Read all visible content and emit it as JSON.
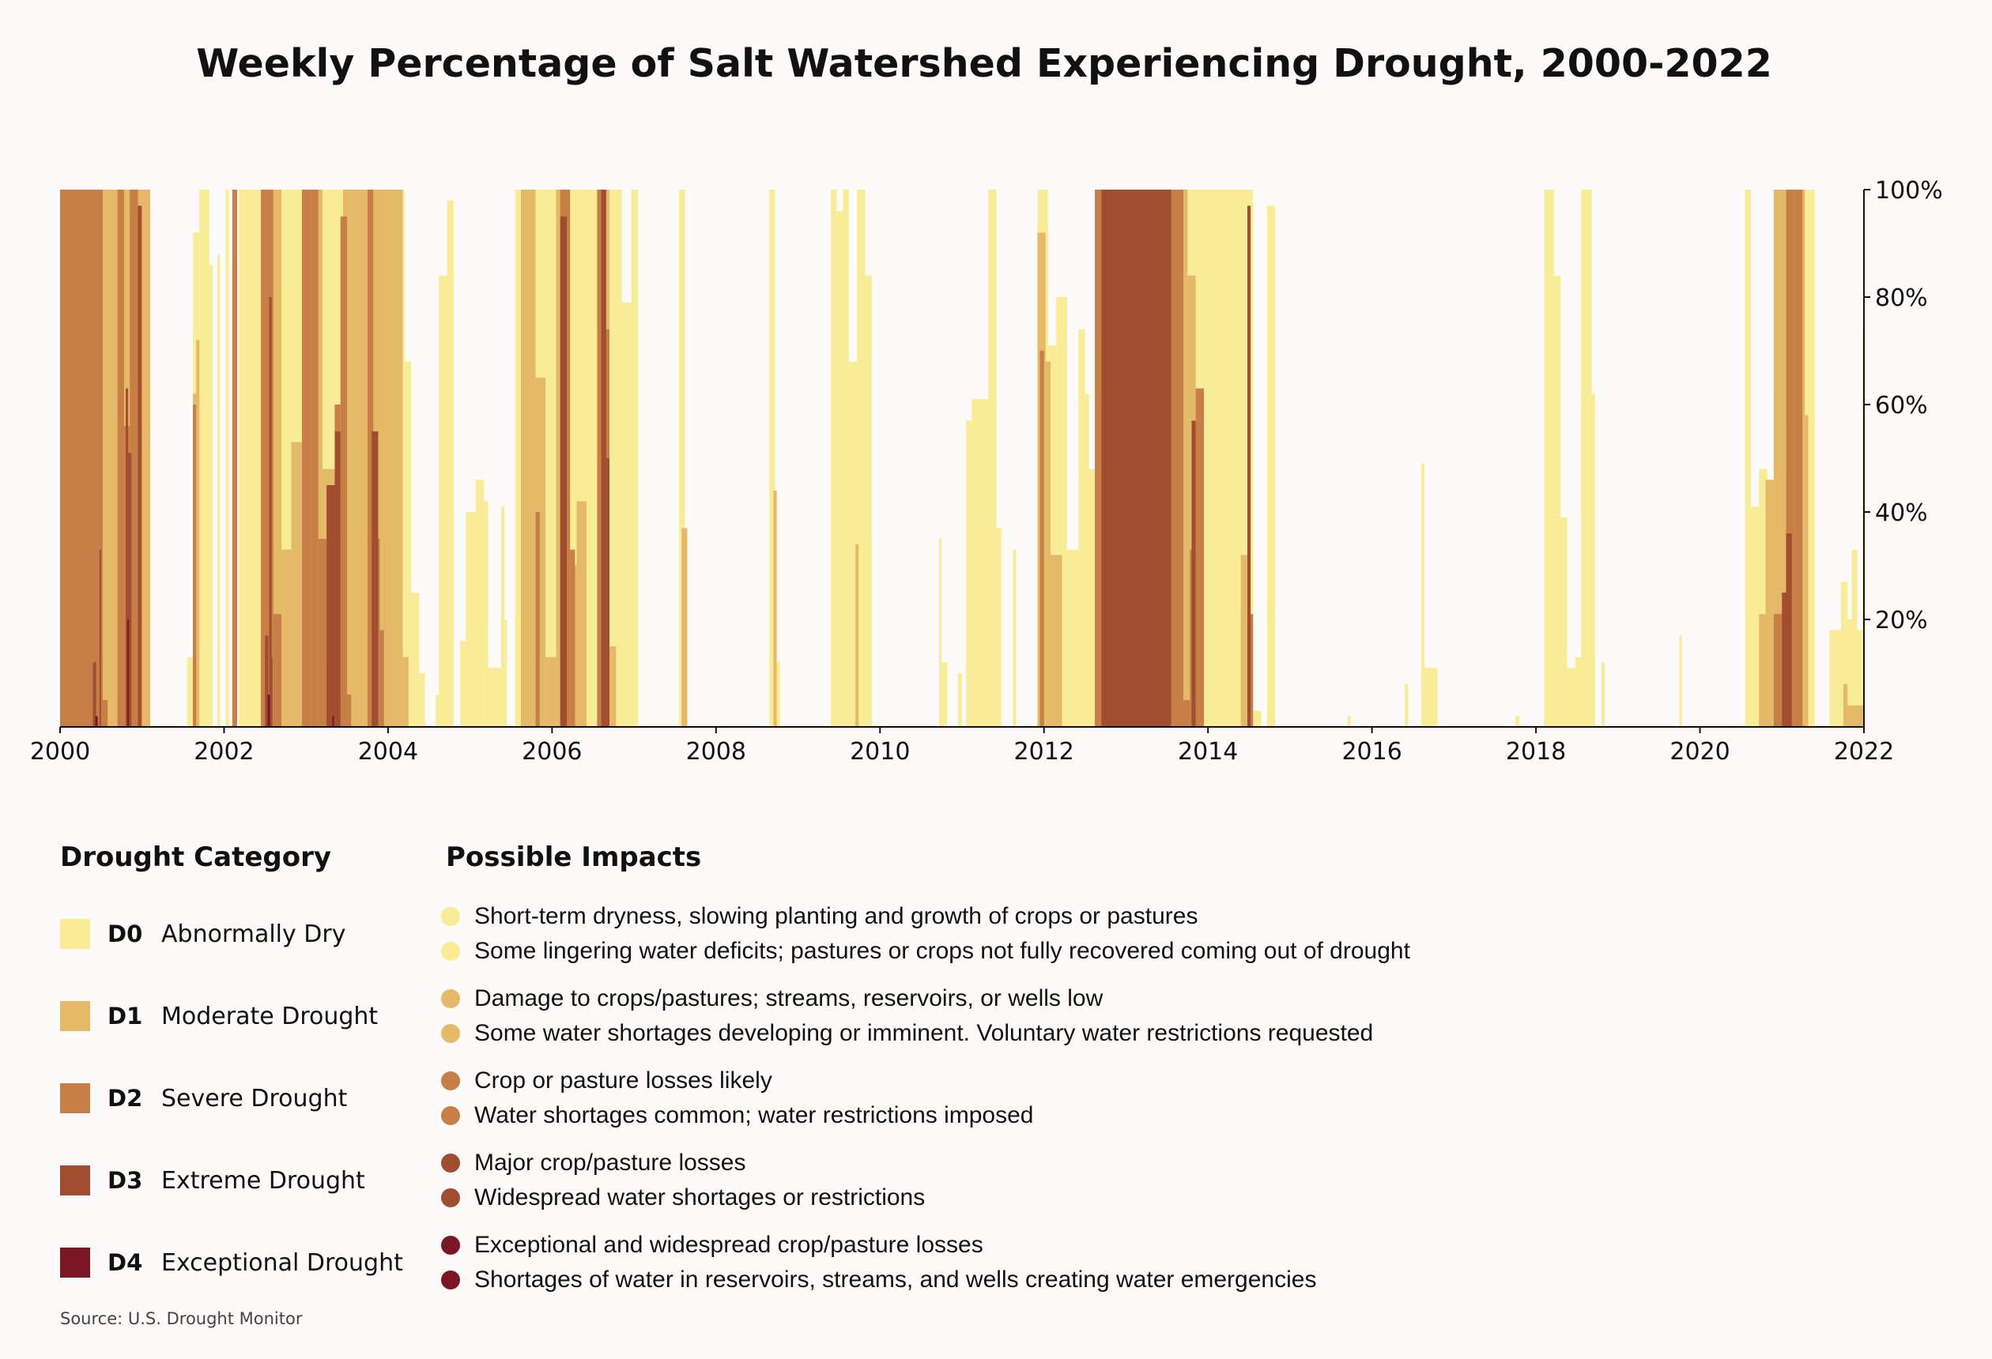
{
  "chart_data": {
    "type": "area",
    "title": "Weekly Percentage of Salt Watershed Experiencing Drought, 2000-2022",
    "xlabel": "",
    "ylabel": "",
    "xlim": [
      2000,
      2022
    ],
    "ylim": [
      0,
      100
    ],
    "x_ticks": [
      "2000",
      "2002",
      "2004",
      "2006",
      "2008",
      "2010",
      "2012",
      "2014",
      "2016",
      "2018",
      "2020",
      "2022"
    ],
    "y_ticks": [
      "20%",
      "40%",
      "60%",
      "80%",
      "100%"
    ],
    "stacking": "cumulative — each value is the percent of area in that category or worse",
    "series": [
      {
        "name": "D0",
        "intervals": [
          [
            2000.0,
            2001.1,
            100
          ],
          [
            2001.55,
            2001.62,
            13
          ],
          [
            2001.62,
            2001.7,
            92
          ],
          [
            2001.7,
            2001.82,
            100
          ],
          [
            2001.82,
            2001.86,
            86
          ],
          [
            2001.92,
            2001.95,
            88
          ],
          [
            2002.02,
            2002.06,
            100
          ],
          [
            2002.18,
            2002.23,
            100
          ],
          [
            2002.23,
            2002.55,
            100
          ],
          [
            2002.55,
            2003.8,
            100
          ],
          [
            2003.8,
            2004.2,
            100
          ],
          [
            2004.2,
            2004.28,
            68
          ],
          [
            2004.28,
            2004.38,
            25
          ],
          [
            2004.38,
            2004.45,
            10
          ],
          [
            2004.58,
            2004.62,
            6
          ],
          [
            2004.62,
            2004.72,
            84
          ],
          [
            2004.72,
            2004.8,
            98
          ],
          [
            2004.88,
            2004.95,
            16
          ],
          [
            2004.95,
            2005.07,
            40
          ],
          [
            2005.07,
            2005.17,
            46
          ],
          [
            2005.17,
            2005.22,
            42
          ],
          [
            2005.22,
            2005.38,
            11
          ],
          [
            2005.38,
            2005.42,
            41
          ],
          [
            2005.42,
            2005.45,
            20
          ],
          [
            2005.55,
            2006.85,
            100
          ],
          [
            2006.85,
            2006.97,
            79
          ],
          [
            2006.97,
            2007.05,
            100
          ],
          [
            2007.55,
            2007.62,
            100
          ],
          [
            2008.65,
            2008.72,
            100
          ],
          [
            2008.72,
            2008.78,
            12
          ],
          [
            2009.4,
            2009.47,
            100
          ],
          [
            2009.47,
            2009.55,
            96
          ],
          [
            2009.55,
            2009.62,
            100
          ],
          [
            2009.62,
            2009.72,
            68
          ],
          [
            2009.72,
            2009.82,
            100
          ],
          [
            2009.82,
            2009.9,
            84
          ],
          [
            2010.72,
            2010.75,
            35
          ],
          [
            2010.75,
            2010.82,
            12
          ],
          [
            2010.95,
            2011.0,
            10
          ],
          [
            2011.05,
            2011.12,
            57
          ],
          [
            2011.12,
            2011.32,
            61
          ],
          [
            2011.32,
            2011.42,
            100
          ],
          [
            2011.42,
            2011.48,
            37
          ],
          [
            2011.62,
            2011.66,
            33
          ],
          [
            2011.92,
            2012.05,
            100
          ],
          [
            2012.05,
            2012.15,
            71
          ],
          [
            2012.15,
            2012.28,
            80
          ],
          [
            2012.28,
            2012.42,
            33
          ],
          [
            2012.42,
            2012.5,
            74
          ],
          [
            2012.5,
            2012.55,
            62
          ],
          [
            2012.55,
            2012.65,
            48
          ],
          [
            2012.65,
            2014.55,
            100
          ],
          [
            2014.55,
            2014.65,
            3
          ],
          [
            2014.72,
            2014.82,
            97
          ],
          [
            2015.7,
            2015.74,
            2
          ],
          [
            2016.4,
            2016.44,
            8
          ],
          [
            2016.6,
            2016.64,
            49
          ],
          [
            2016.64,
            2016.8,
            11
          ],
          [
            2017.75,
            2017.8,
            2
          ],
          [
            2018.1,
            2018.22,
            100
          ],
          [
            2018.22,
            2018.3,
            84
          ],
          [
            2018.3,
            2018.38,
            39
          ],
          [
            2018.38,
            2018.48,
            11
          ],
          [
            2018.48,
            2018.55,
            13
          ],
          [
            2018.55,
            2018.68,
            100
          ],
          [
            2018.68,
            2018.72,
            62
          ],
          [
            2018.8,
            2018.84,
            12
          ],
          [
            2019.75,
            2019.78,
            17
          ],
          [
            2020.55,
            2020.62,
            100
          ],
          [
            2020.62,
            2020.72,
            41
          ],
          [
            2020.72,
            2020.82,
            48
          ],
          [
            2020.82,
            2020.9,
            40
          ],
          [
            2020.9,
            2021.0,
            63
          ],
          [
            2021.0,
            2021.1,
            100
          ],
          [
            2021.1,
            2021.4,
            100
          ],
          [
            2021.58,
            2021.72,
            18
          ],
          [
            2021.72,
            2021.8,
            27
          ],
          [
            2021.8,
            2021.85,
            20
          ],
          [
            2021.85,
            2021.92,
            33
          ],
          [
            2021.92,
            2021.98,
            18
          ],
          [
            2021.98,
            2022.0,
            74
          ]
        ]
      },
      {
        "name": "D1",
        "intervals": [
          [
            2000.0,
            2001.1,
            100
          ],
          [
            2001.62,
            2001.66,
            62
          ],
          [
            2001.66,
            2001.7,
            72
          ],
          [
            2002.45,
            2002.55,
            100
          ],
          [
            2002.55,
            2002.7,
            100
          ],
          [
            2002.7,
            2002.82,
            33
          ],
          [
            2002.82,
            2002.95,
            53
          ],
          [
            2002.95,
            2003.2,
            100
          ],
          [
            2003.2,
            2003.35,
            48
          ],
          [
            2003.35,
            2003.45,
            35
          ],
          [
            2003.45,
            2003.55,
            100
          ],
          [
            2003.55,
            2003.75,
            100
          ],
          [
            2003.75,
            2004.18,
            100
          ],
          [
            2004.18,
            2004.25,
            13
          ],
          [
            2005.62,
            2005.8,
            100
          ],
          [
            2005.8,
            2005.92,
            65
          ],
          [
            2005.92,
            2006.05,
            13
          ],
          [
            2006.05,
            2006.22,
            100
          ],
          [
            2006.22,
            2006.3,
            30
          ],
          [
            2006.3,
            2006.42,
            42
          ],
          [
            2006.55,
            2006.7,
            100
          ],
          [
            2006.7,
            2006.78,
            15
          ],
          [
            2007.58,
            2007.65,
            37
          ],
          [
            2008.7,
            2008.74,
            44
          ],
          [
            2009.7,
            2009.74,
            34
          ],
          [
            2011.92,
            2012.02,
            92
          ],
          [
            2012.02,
            2012.08,
            68
          ],
          [
            2012.08,
            2012.22,
            32
          ],
          [
            2012.65,
            2013.75,
            100
          ],
          [
            2013.75,
            2013.85,
            84
          ],
          [
            2013.85,
            2013.95,
            57
          ],
          [
            2014.4,
            2014.5,
            32
          ],
          [
            2020.72,
            2020.8,
            21
          ],
          [
            2020.8,
            2020.9,
            46
          ],
          [
            2020.9,
            2021.05,
            100
          ],
          [
            2021.05,
            2021.28,
            100
          ],
          [
            2021.28,
            2021.32,
            58
          ],
          [
            2021.75,
            2021.8,
            8
          ],
          [
            2021.8,
            2021.85,
            4
          ],
          [
            2021.85,
            2022.0,
            4
          ]
        ]
      },
      {
        "name": "D2",
        "intervals": [
          [
            2000.0,
            2000.52,
            100
          ],
          [
            2000.52,
            2000.58,
            5
          ],
          [
            2000.7,
            2000.78,
            100
          ],
          [
            2000.78,
            2000.85,
            56
          ],
          [
            2000.85,
            2000.95,
            100
          ],
          [
            2000.95,
            2001.0,
            97
          ],
          [
            2001.62,
            2001.66,
            60
          ],
          [
            2002.1,
            2002.16,
            100
          ],
          [
            2002.45,
            2002.6,
            100
          ],
          [
            2002.6,
            2002.7,
            21
          ],
          [
            2002.95,
            2003.05,
            100
          ],
          [
            2003.05,
            2003.15,
            100
          ],
          [
            2003.15,
            2003.25,
            35
          ],
          [
            2003.25,
            2003.35,
            12
          ],
          [
            2003.35,
            2003.42,
            60
          ],
          [
            2003.42,
            2003.5,
            95
          ],
          [
            2003.5,
            2003.55,
            6
          ],
          [
            2003.75,
            2003.82,
            100
          ],
          [
            2003.82,
            2003.9,
            35
          ],
          [
            2003.9,
            2003.95,
            18
          ],
          [
            2005.8,
            2005.85,
            40
          ],
          [
            2006.1,
            2006.22,
            100
          ],
          [
            2006.22,
            2006.28,
            33
          ],
          [
            2006.55,
            2006.62,
            100
          ],
          [
            2006.62,
            2006.7,
            74
          ],
          [
            2011.95,
            2012.0,
            70
          ],
          [
            2012.62,
            2013.7,
            100
          ],
          [
            2013.7,
            2013.78,
            5
          ],
          [
            2013.78,
            2013.85,
            33
          ],
          [
            2013.85,
            2013.95,
            63
          ],
          [
            2014.5,
            2014.55,
            21
          ],
          [
            2020.9,
            2021.0,
            21
          ],
          [
            2021.05,
            2021.15,
            100
          ],
          [
            2021.15,
            2021.25,
            100
          ]
        ]
      },
      {
        "name": "D3",
        "intervals": [
          [
            2000.4,
            2000.44,
            12
          ],
          [
            2000.48,
            2000.5,
            33
          ],
          [
            2000.8,
            2000.83,
            63
          ],
          [
            2000.83,
            2000.87,
            51
          ],
          [
            2000.95,
            2000.99,
            97
          ],
          [
            2002.5,
            2002.54,
            17
          ],
          [
            2002.55,
            2002.59,
            13
          ],
          [
            2002.55,
            2002.58,
            80
          ],
          [
            2003.25,
            2003.35,
            45
          ],
          [
            2003.35,
            2003.42,
            55
          ],
          [
            2003.8,
            2003.88,
            55
          ],
          [
            2006.1,
            2006.18,
            95
          ],
          [
            2006.6,
            2006.66,
            100
          ],
          [
            2006.66,
            2006.7,
            50
          ],
          [
            2012.7,
            2013.55,
            100
          ],
          [
            2013.8,
            2013.85,
            57
          ],
          [
            2014.48,
            2014.52,
            97
          ],
          [
            2021.0,
            2021.05,
            25
          ],
          [
            2021.05,
            2021.12,
            36
          ]
        ]
      },
      {
        "name": "D4",
        "intervals": [
          [
            2000.43,
            2000.46,
            2
          ],
          [
            2000.82,
            2000.84,
            20
          ],
          [
            2002.53,
            2002.56,
            6
          ],
          [
            2003.32,
            2003.34,
            2
          ]
        ]
      }
    ],
    "legend_title": "Drought Category",
    "legend": [
      {
        "code": "D0",
        "label": "Abnormally Dry",
        "color": "#f9ec96"
      },
      {
        "code": "D1",
        "label": "Moderate Drought",
        "color": "#e4b968"
      },
      {
        "code": "D2",
        "label": "Severe Drought",
        "color": "#c87f46"
      },
      {
        "code": "D3",
        "label": "Extreme Drought",
        "color": "#a14d2f"
      },
      {
        "code": "D4",
        "label": "Exceptional Drought",
        "color": "#7a1626"
      }
    ],
    "impacts_title": "Possible Impacts",
    "impacts": [
      {
        "color": "#f9ec96",
        "lines": [
          "Short-term dryness, slowing planting and growth of crops or pastures",
          "Some lingering water deficits; pastures or crops not fully recovered coming out of drought"
        ]
      },
      {
        "color": "#e4b968",
        "lines": [
          "Damage to crops/pastures; streams, reservoirs, or wells low",
          "Some water shortages developing or imminent. Voluntary water restrictions requested"
        ]
      },
      {
        "color": "#c87f46",
        "lines": [
          "Crop or pasture losses likely",
          "Water shortages common; water restrictions imposed"
        ]
      },
      {
        "color": "#a14d2f",
        "lines": [
          "Major crop/pasture losses",
          "Widespread water shortages or restrictions"
        ]
      },
      {
        "color": "#7a1626",
        "lines": [
          "Exceptional and widespread crop/pasture losses",
          "Shortages of water in reservoirs, streams, and wells creating water emergencies"
        ]
      }
    ],
    "source": "Source: U.S. Drought Monitor"
  }
}
